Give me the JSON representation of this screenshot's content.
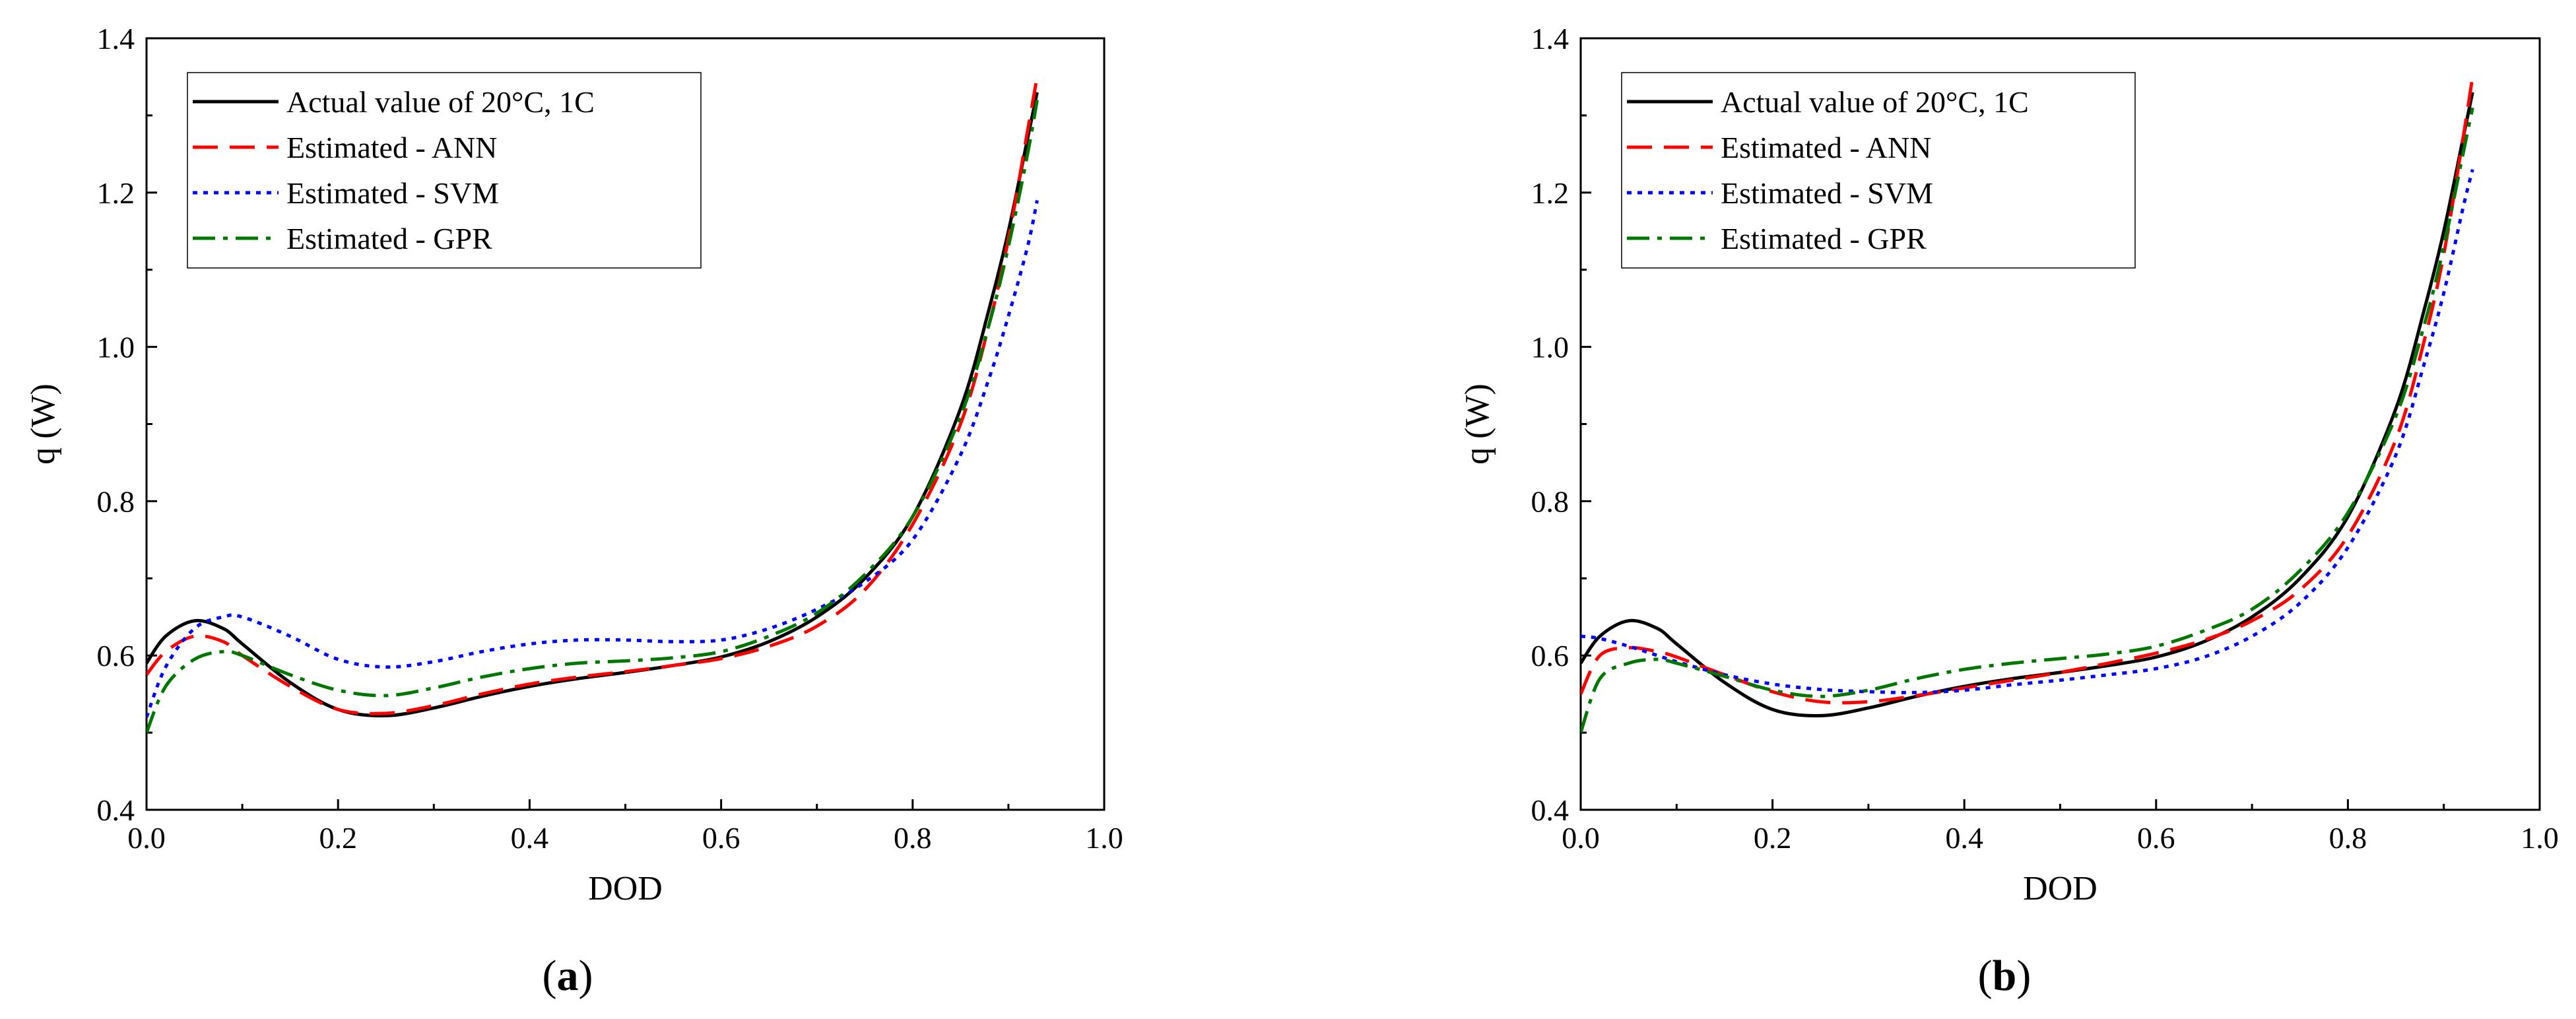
{
  "chart_data": [
    {
      "type": "line",
      "caption": "a",
      "xlabel": "DOD",
      "ylabel": "q (W)",
      "xlim": [
        0.0,
        1.0
      ],
      "ylim": [
        0.4,
        1.4
      ],
      "xticks": [
        "0.0",
        "0.2",
        "0.4",
        "0.6",
        "0.8",
        "1.0"
      ],
      "yticks": [
        "0.4",
        "0.6",
        "0.8",
        "1.0",
        "1.2",
        "1.4"
      ],
      "legend_position": "top-left",
      "series": [
        {
          "name": "Actual value of 20°C, 1C",
          "color": "#000000",
          "dash": "solid",
          "x": [
            0.0,
            0.02,
            0.05,
            0.08,
            0.1,
            0.15,
            0.2,
            0.25,
            0.3,
            0.35,
            0.4,
            0.45,
            0.5,
            0.55,
            0.6,
            0.65,
            0.7,
            0.75,
            0.8,
            0.85,
            0.88,
            0.9,
            0.92,
            0.93
          ],
          "y": [
            0.59,
            0.625,
            0.645,
            0.635,
            0.615,
            0.565,
            0.53,
            0.522,
            0.532,
            0.547,
            0.56,
            0.57,
            0.578,
            0.587,
            0.598,
            0.618,
            0.65,
            0.7,
            0.78,
            0.92,
            1.05,
            1.15,
            1.27,
            1.33
          ]
        },
        {
          "name": "Estimated - ANN",
          "color": "#ff0000",
          "dash": "dashed",
          "x": [
            0.0,
            0.02,
            0.05,
            0.08,
            0.1,
            0.15,
            0.2,
            0.25,
            0.3,
            0.35,
            0.4,
            0.45,
            0.5,
            0.55,
            0.6,
            0.65,
            0.7,
            0.75,
            0.8,
            0.85,
            0.88,
            0.9,
            0.92,
            0.93
          ],
          "y": [
            0.575,
            0.605,
            0.625,
            0.618,
            0.6,
            0.56,
            0.53,
            0.525,
            0.535,
            0.55,
            0.563,
            0.572,
            0.579,
            0.587,
            0.596,
            0.612,
            0.638,
            0.685,
            0.77,
            0.9,
            1.03,
            1.14,
            1.28,
            1.35
          ]
        },
        {
          "name": "Estimated - SVM",
          "color": "#0000ff",
          "dash": "dotted",
          "x": [
            0.0,
            0.02,
            0.05,
            0.08,
            0.1,
            0.15,
            0.2,
            0.25,
            0.3,
            0.35,
            0.4,
            0.45,
            0.5,
            0.55,
            0.6,
            0.65,
            0.7,
            0.75,
            0.8,
            0.85,
            0.88,
            0.9,
            0.92,
            0.93
          ],
          "y": [
            0.52,
            0.585,
            0.635,
            0.65,
            0.65,
            0.625,
            0.595,
            0.585,
            0.592,
            0.605,
            0.615,
            0.62,
            0.62,
            0.618,
            0.62,
            0.635,
            0.66,
            0.695,
            0.75,
            0.86,
            0.96,
            1.04,
            1.13,
            1.19
          ]
        },
        {
          "name": "Estimated - GPR",
          "color": "#007700",
          "dash": "dashdot",
          "x": [
            0.0,
            0.02,
            0.05,
            0.08,
            0.1,
            0.15,
            0.2,
            0.25,
            0.3,
            0.35,
            0.4,
            0.45,
            0.5,
            0.55,
            0.6,
            0.65,
            0.7,
            0.75,
            0.8,
            0.85,
            0.88,
            0.9,
            0.92,
            0.93
          ],
          "y": [
            0.5,
            0.56,
            0.595,
            0.605,
            0.6,
            0.575,
            0.555,
            0.548,
            0.558,
            0.572,
            0.583,
            0.59,
            0.593,
            0.597,
            0.605,
            0.625,
            0.655,
            0.705,
            0.78,
            0.91,
            1.03,
            1.13,
            1.25,
            1.32
          ]
        }
      ]
    },
    {
      "type": "line",
      "caption": "b",
      "xlabel": "DOD",
      "ylabel": "q (W)",
      "xlim": [
        0.0,
        1.0
      ],
      "ylim": [
        0.4,
        1.4
      ],
      "xticks": [
        "0.0",
        "0.2",
        "0.4",
        "0.6",
        "0.8",
        "1.0"
      ],
      "yticks": [
        "0.4",
        "0.6",
        "0.8",
        "1.0",
        "1.2",
        "1.4"
      ],
      "legend_position": "top-left",
      "series": [
        {
          "name": "Actual value of 20°C, 1C",
          "color": "#000000",
          "dash": "solid",
          "x": [
            0.0,
            0.02,
            0.05,
            0.08,
            0.1,
            0.15,
            0.2,
            0.25,
            0.3,
            0.35,
            0.4,
            0.45,
            0.5,
            0.55,
            0.6,
            0.65,
            0.7,
            0.75,
            0.8,
            0.85,
            0.88,
            0.9,
            0.92,
            0.93
          ],
          "y": [
            0.59,
            0.625,
            0.645,
            0.635,
            0.615,
            0.565,
            0.53,
            0.522,
            0.532,
            0.547,
            0.56,
            0.57,
            0.578,
            0.587,
            0.598,
            0.618,
            0.65,
            0.7,
            0.78,
            0.92,
            1.05,
            1.15,
            1.27,
            1.33
          ]
        },
        {
          "name": "Estimated - ANN",
          "color": "#ff0000",
          "dash": "dashed",
          "x": [
            0.0,
            0.02,
            0.05,
            0.08,
            0.1,
            0.15,
            0.2,
            0.25,
            0.3,
            0.35,
            0.4,
            0.45,
            0.5,
            0.55,
            0.6,
            0.65,
            0.7,
            0.75,
            0.8,
            0.85,
            0.88,
            0.9,
            0.92,
            0.93
          ],
          "y": [
            0.55,
            0.6,
            0.61,
            0.605,
            0.598,
            0.575,
            0.553,
            0.54,
            0.54,
            0.548,
            0.558,
            0.568,
            0.578,
            0.59,
            0.603,
            0.62,
            0.645,
            0.685,
            0.755,
            0.88,
            1.01,
            1.12,
            1.27,
            1.35
          ]
        },
        {
          "name": "Estimated - SVM",
          "color": "#0000ff",
          "dash": "dotted",
          "x": [
            0.0,
            0.02,
            0.05,
            0.08,
            0.1,
            0.15,
            0.2,
            0.25,
            0.3,
            0.35,
            0.4,
            0.45,
            0.5,
            0.55,
            0.6,
            0.65,
            0.7,
            0.75,
            0.8,
            0.85,
            0.88,
            0.9,
            0.92,
            0.93
          ],
          "y": [
            0.625,
            0.622,
            0.612,
            0.6,
            0.592,
            0.575,
            0.563,
            0.556,
            0.553,
            0.552,
            0.555,
            0.562,
            0.568,
            0.575,
            0.583,
            0.598,
            0.625,
            0.668,
            0.74,
            0.86,
            0.98,
            1.07,
            1.18,
            1.23
          ]
        },
        {
          "name": "Estimated - GPR",
          "color": "#007700",
          "dash": "dashdot",
          "x": [
            0.0,
            0.02,
            0.05,
            0.08,
            0.1,
            0.15,
            0.2,
            0.25,
            0.3,
            0.35,
            0.4,
            0.45,
            0.5,
            0.55,
            0.6,
            0.65,
            0.7,
            0.75,
            0.8,
            0.85,
            0.88,
            0.9,
            0.92,
            0.93
          ],
          "y": [
            0.5,
            0.57,
            0.59,
            0.595,
            0.59,
            0.573,
            0.555,
            0.547,
            0.555,
            0.57,
            0.582,
            0.59,
            0.596,
            0.602,
            0.612,
            0.632,
            0.66,
            0.71,
            0.785,
            0.91,
            1.03,
            1.13,
            1.25,
            1.31
          ]
        }
      ]
    }
  ]
}
